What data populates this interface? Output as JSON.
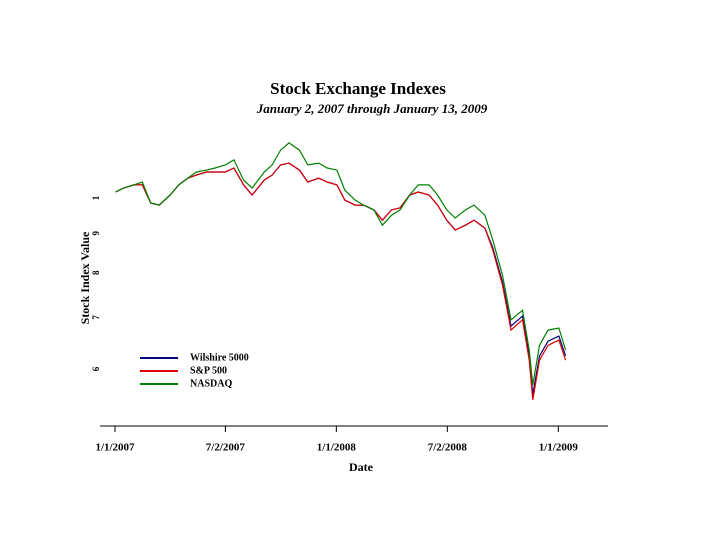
{
  "chart_data": {
    "type": "line",
    "title": "Stock Exchange Indexes",
    "subtitle": "January 2, 2007 through January 13, 2009",
    "xlabel": "Date",
    "ylabel": "Stock Index Value",
    "x": [
      "2007-01-02",
      "2007-01-15",
      "2007-02-01",
      "2007-02-15",
      "2007-03-01",
      "2007-03-15",
      "2007-04-02",
      "2007-04-16",
      "2007-05-01",
      "2007-05-15",
      "2007-06-01",
      "2007-06-15",
      "2007-07-02",
      "2007-07-16",
      "2007-08-01",
      "2007-08-15",
      "2007-09-04",
      "2007-09-17",
      "2007-10-01",
      "2007-10-15",
      "2007-11-01",
      "2007-11-15",
      "2007-12-03",
      "2007-12-17",
      "2008-01-02",
      "2008-01-15",
      "2008-02-01",
      "2008-02-15",
      "2008-03-03",
      "2008-03-17",
      "2008-04-01",
      "2008-04-15",
      "2008-05-01",
      "2008-05-15",
      "2008-06-02",
      "2008-06-16",
      "2008-07-01",
      "2008-07-15",
      "2008-08-01",
      "2008-08-15",
      "2008-09-02",
      "2008-09-15",
      "2008-10-01",
      "2008-10-15",
      "2008-11-03",
      "2008-11-14",
      "2008-11-20",
      "2008-12-01",
      "2008-12-15",
      "2009-01-02",
      "2009-01-13"
    ],
    "series": [
      {
        "name": "Wilshire 5000",
        "color": "#000080",
        "values": [
          1.018,
          1.03,
          1.04,
          1.04,
          0.985,
          0.979,
          1.009,
          1.04,
          1.061,
          1.071,
          1.081,
          1.081,
          1.081,
          1.094,
          1.04,
          1.009,
          1.055,
          1.071,
          1.104,
          1.11,
          1.087,
          1.049,
          1.061,
          1.049,
          1.04,
          0.994,
          0.979,
          0.979,
          0.965,
          0.936,
          0.965,
          0.971,
          1.009,
          1.018,
          1.009,
          0.979,
          0.936,
          0.909,
          0.922,
          0.936,
          0.914,
          0.862,
          0.778,
          0.682,
          0.703,
          0.624,
          0.556,
          0.624,
          0.652,
          0.662,
          0.624
        ]
      },
      {
        "name": "S&P 500",
        "color": "#e00000",
        "values": [
          1.018,
          1.03,
          1.04,
          1.04,
          0.985,
          0.979,
          1.009,
          1.04,
          1.061,
          1.071,
          1.081,
          1.081,
          1.081,
          1.094,
          1.04,
          1.009,
          1.055,
          1.071,
          1.104,
          1.11,
          1.087,
          1.049,
          1.061,
          1.049,
          1.04,
          0.994,
          0.979,
          0.979,
          0.965,
          0.936,
          0.965,
          0.971,
          1.009,
          1.018,
          1.009,
          0.979,
          0.936,
          0.909,
          0.922,
          0.936,
          0.914,
          0.856,
          0.771,
          0.674,
          0.695,
          0.616,
          0.547,
          0.616,
          0.644,
          0.654,
          0.616
        ]
      },
      {
        "name": "NASDAQ",
        "color": "#008000",
        "values": [
          1.018,
          1.03,
          1.04,
          1.049,
          0.985,
          0.979,
          1.009,
          1.04,
          1.061,
          1.081,
          1.087,
          1.094,
          1.104,
          1.121,
          1.055,
          1.03,
          1.081,
          1.104,
          1.154,
          1.179,
          1.154,
          1.104,
          1.11,
          1.094,
          1.087,
          1.024,
          0.994,
          0.979,
          0.965,
          0.922,
          0.95,
          0.965,
          1.009,
          1.04,
          1.04,
          1.009,
          0.965,
          0.942,
          0.965,
          0.979,
          0.95,
          0.882,
          0.794,
          0.695,
          0.715,
          0.635,
          0.572,
          0.644,
          0.674,
          0.678,
          0.635
        ]
      }
    ],
    "xlim": [
      "2006-11-29",
      "2009-03-24"
    ],
    "xticks": [
      {
        "value": "2007-01-01",
        "label": "1/1/2007"
      },
      {
        "value": "2007-07-02",
        "label": "7/2/2007"
      },
      {
        "value": "2008-01-01",
        "label": "1/1/2008"
      },
      {
        "value": "2008-07-02",
        "label": "7/2/2008"
      },
      {
        "value": "2009-01-01",
        "label": "1/1/2009"
      }
    ],
    "ylim": [
      0.5,
      1.2
    ],
    "yticks": [
      1,
      {
        "value": 0.9,
        "label": "9"
      },
      {
        "value": 0.8,
        "label": "8"
      },
      {
        "value": 0.7,
        "label": "7"
      },
      {
        "value": 0.6,
        "label": "6"
      }
    ],
    "ylog": true,
    "legend": "lower left"
  }
}
